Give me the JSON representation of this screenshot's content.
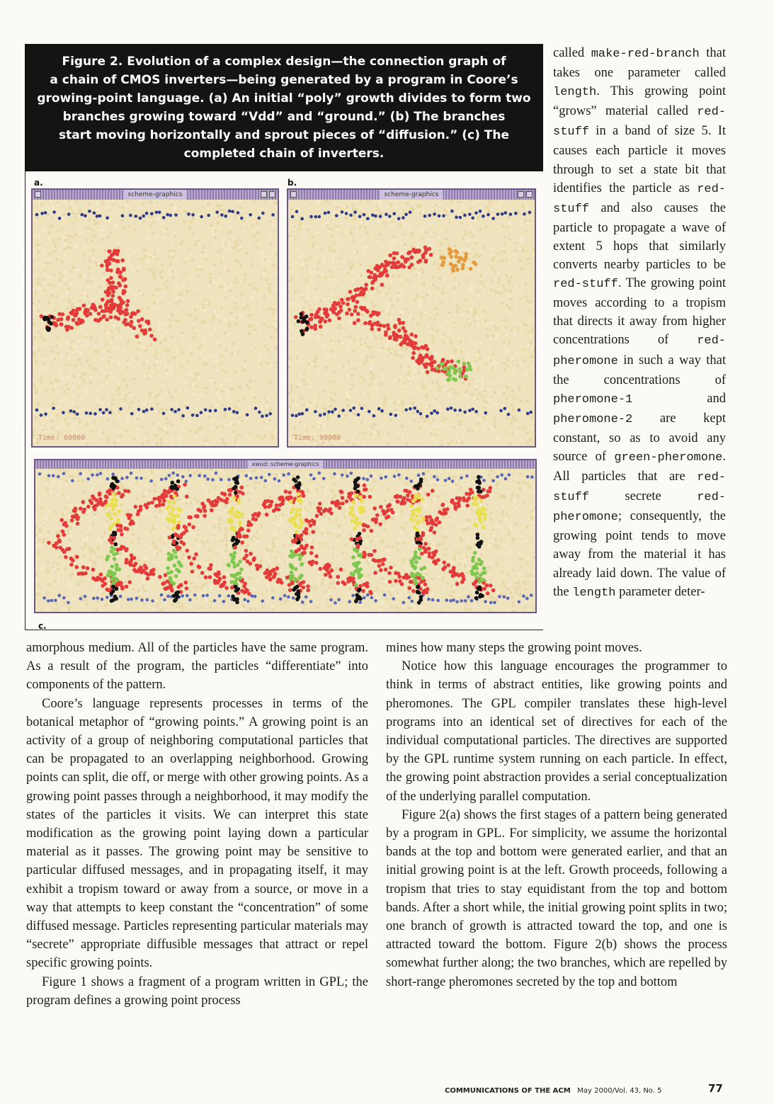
{
  "figure": {
    "caption_lines": [
      "Figure 2. Evolution of a complex design—the connection graph of",
      "a chain of CMOS inverters—being generated by a program in Coore’s",
      "growing-point language. (a) An initial “poly” growth divides to form two",
      "branches growing toward “Vdd” and “ground.” (b) The branches",
      "start moving horizontally and sprout pieces of “diffusion.” (c) The",
      "completed chain of inverters."
    ],
    "panels": {
      "a": {
        "label": "a.",
        "window_title": "scheme-graphics",
        "time": "Time: 60000"
      },
      "b": {
        "label": "b.",
        "window_title": "scheme-graphics",
        "time": "Time: 99000"
      },
      "c": {
        "label": "c.",
        "window_title": "xwud: scheme-graphics"
      }
    },
    "colors": {
      "background": "#efe3bd",
      "poly": "#e43a3a",
      "diffusion_green": "#7ec84f",
      "diffusion_yellow": "#e8e051",
      "band": "#2f3a8a",
      "contact": "#111111",
      "orange": "#e79a3b"
    }
  },
  "right_column": {
    "segments": [
      {
        "t": "called "
      },
      {
        "m": "make-red-branch"
      },
      {
        "t": " that takes one parameter called "
      },
      {
        "m": "length"
      },
      {
        "t": ". This growing point “grows” material called "
      },
      {
        "m": "red-stuff"
      },
      {
        "t": " in a band of size 5. It causes each particle it moves through to set a state bit that identifies the particle as "
      },
      {
        "m": "red-stuff"
      },
      {
        "t": " and also causes the particle to propagate a wave of extent 5 hops that similarly converts nearby particles to be "
      },
      {
        "m": "red-stuff"
      },
      {
        "t": ". The growing point moves according to a tropism that directs it away from higher concentrations of "
      },
      {
        "m": "red-pheromone"
      },
      {
        "t": " in such a way that the concentrations of "
      },
      {
        "m": "pheromone-1"
      },
      {
        "t": " and "
      },
      {
        "m": "pheromone-2"
      },
      {
        "t": " are kept constant, so as to avoid any source of "
      },
      {
        "m": "green-pheromone"
      },
      {
        "t": ". All particles that are "
      },
      {
        "m": "red-stuff"
      },
      {
        "t": " secrete "
      },
      {
        "m": "red-pheromone"
      },
      {
        "t": "; consequently, the growing point tends to move away from the material it has already laid down. The value of the "
      },
      {
        "m": "length"
      },
      {
        "t": " parameter deter-"
      }
    ]
  },
  "left_column": {
    "paragraphs": [
      "amorphous medium. All of the particles have the same program. As a result of the program, the particles “differentiate” into components of the pattern.",
      "Coore’s language represents processes in terms of the botanical metaphor of “growing points.” A growing point is an activity of a group of neighboring computational particles that can be propagated to an overlapping neighborhood. Growing points can split, die off, or merge with other growing points. As a growing point passes through a neighborhood, it may modify the states of the particles it visits. We can interpret this state modification as the growing point laying down a particular material as it passes. The growing point may be sensitive to particular diffused messages, and in propagating itself, it may exhibit a tropism toward or away from a source, or move in a way that attempts to keep constant the “concentration” of some diffused message. Particles representing particular materials may “secrete” appropriate diffusible messages that attract or repel specific growing points.",
      "Figure 1 shows a fragment of a program written in GPL; the program defines a growing point process"
    ]
  },
  "middle_column": {
    "paragraphs": [
      "mines how many steps the growing point moves.",
      "Notice how this language encourages the programmer to think in terms of abstract entities, like growing points and pheromones. The GPL compiler translates these high-level programs into an identical set of directives for each of the individual computational particles. The directives are supported by the GPL runtime system running on each particle. In effect, the growing point abstraction provides a serial conceptualization of the underlying parallel computation.",
      "Figure 2(a) shows the first stages of a pattern being generated by a program in GPL. For simplicity, we assume the horizontal bands at the top and bottom were generated earlier, and that an initial growing point is at the left. Growth proceeds, following a tropism that tries to stay equidistant from the top and bottom bands. After a short while, the initial growing point splits in two; one branch of growth is attracted toward the top, and one is attracted toward the bottom. Figure 2(b) shows the process somewhat further along; the two branches, which are repelled by short-range pheromones secreted by the top and bottom"
    ]
  },
  "footer": {
    "journal": "COMMUNICATIONS OF THE ACM",
    "issue": "May 2000/Vol. 43, No. 5",
    "page": "77"
  }
}
